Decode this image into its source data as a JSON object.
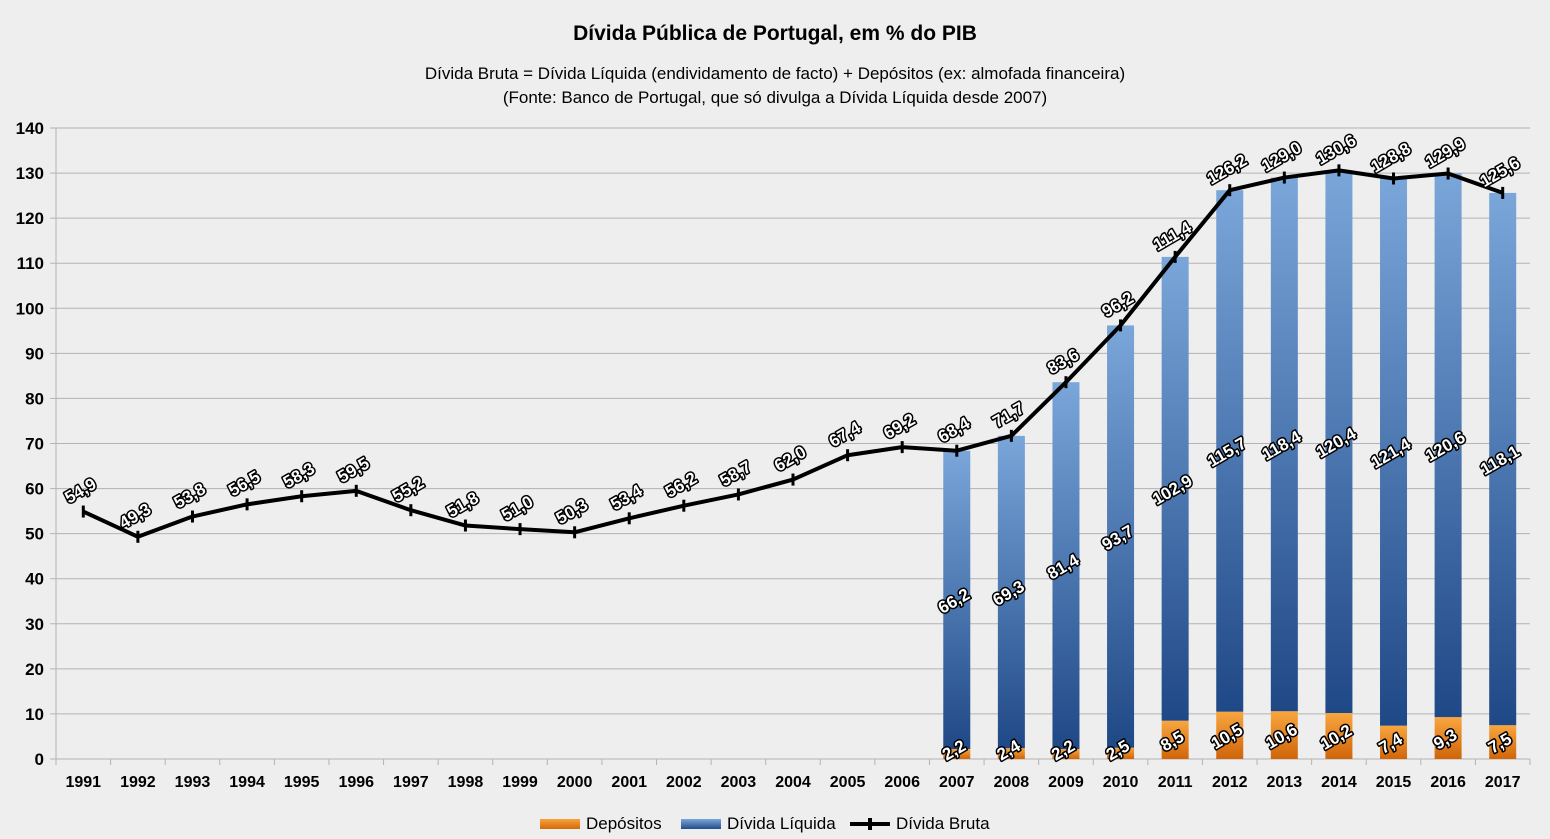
{
  "chart_data": {
    "type": "bar+line",
    "title": "Dívida Pública de Portugal, em % do PIB",
    "subtitle_lines": [
      "Dívida Bruta = Dívida Líquida (endividamento de facto) + Depósitos (ex: almofada financeira)",
      "(Fonte: Banco de Portugal, que só divulga a Dívida Líquida desde 2007)"
    ],
    "categories": [
      "1991",
      "1992",
      "1993",
      "1994",
      "1995",
      "1996",
      "1997",
      "1998",
      "1999",
      "2000",
      "2001",
      "2002",
      "2003",
      "2004",
      "2005",
      "2006",
      "2007",
      "2008",
      "2009",
      "2010",
      "2011",
      "2012",
      "2013",
      "2014",
      "2015",
      "2016",
      "2017"
    ],
    "y_ticks": [
      "0",
      "10",
      "20",
      "30",
      "40",
      "50",
      "60",
      "70",
      "80",
      "90",
      "100",
      "110",
      "120",
      "130",
      "140"
    ],
    "ylim": [
      0,
      140
    ],
    "grid": true,
    "legend_position": "bottom",
    "series": [
      {
        "name": "Depósitos",
        "kind": "stacked-bar",
        "color": "#ee8a1f",
        "values": [
          null,
          null,
          null,
          null,
          null,
          null,
          null,
          null,
          null,
          null,
          null,
          null,
          null,
          null,
          null,
          null,
          2.2,
          2.4,
          2.2,
          2.5,
          8.5,
          10.5,
          10.6,
          10.2,
          7.4,
          9.3,
          7.5
        ],
        "labels": [
          "",
          "",
          "",
          "",
          "",
          "",
          "",
          "",
          "",
          "",
          "",
          "",
          "",
          "",
          "",
          "",
          "2,2",
          "2,4",
          "2,2",
          "2,5",
          "8,5",
          "10,5",
          "10,6",
          "10,2",
          "7,4",
          "9,3",
          "7,5"
        ]
      },
      {
        "name": "Dívida Líquida",
        "kind": "stacked-bar",
        "color": "#3a6fb0",
        "values": [
          null,
          null,
          null,
          null,
          null,
          null,
          null,
          null,
          null,
          null,
          null,
          null,
          null,
          null,
          null,
          null,
          66.2,
          69.3,
          81.4,
          93.7,
          102.9,
          115.7,
          118.4,
          120.4,
          121.4,
          120.6,
          118.1
        ],
        "labels": [
          "",
          "",
          "",
          "",
          "",
          "",
          "",
          "",
          "",
          "",
          "",
          "",
          "",
          "",
          "",
          "",
          "66,2",
          "69,3",
          "81,4",
          "93,7",
          "102,9",
          "115,7",
          "118,4",
          "120,4",
          "121,4",
          "120,6",
          "118,1"
        ]
      },
      {
        "name": "Dívida Bruta",
        "kind": "line",
        "color": "#000000",
        "values": [
          54.9,
          49.3,
          53.8,
          56.5,
          58.3,
          59.5,
          55.2,
          51.8,
          51.0,
          50.3,
          53.4,
          56.2,
          58.7,
          62.0,
          67.4,
          69.2,
          68.4,
          71.7,
          83.6,
          96.2,
          111.4,
          126.2,
          129.0,
          130.6,
          128.8,
          129.9,
          125.6
        ],
        "labels": [
          "54,9",
          "49,3",
          "53,8",
          "56,5",
          "58,3",
          "59,5",
          "55,2",
          "51,8",
          "51,0",
          "50,3",
          "53,4",
          "56,2",
          "58,7",
          "62,0",
          "67,4",
          "69,2",
          "68,4",
          "71,7",
          "83,6",
          "96,2",
          "111,4",
          "126,2",
          "129,0",
          "130,6",
          "128,8",
          "129,9",
          "125,6"
        ]
      }
    ]
  }
}
